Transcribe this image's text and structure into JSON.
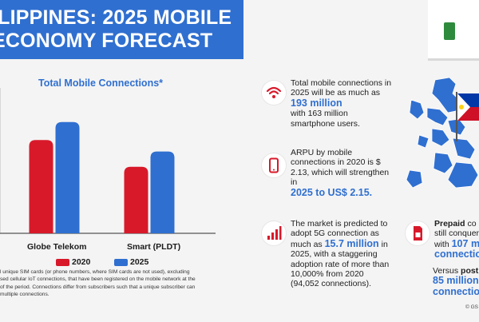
{
  "header": {
    "title_line1": "ILIPPINES: 2025 MOBILE",
    "title_line2": "ECONOMY FORECAST"
  },
  "chart_data": {
    "type": "bar",
    "title": "Total Mobile Connections*",
    "categories": [
      "Globe Telekom",
      "Smart (PLDT)"
    ],
    "series": [
      {
        "name": "2020",
        "values": [
          73,
          52
        ],
        "color": "#d8192a"
      },
      {
        "name": "2025",
        "values": [
          87,
          64
        ],
        "color": "#2f6fd0"
      }
    ],
    "ylim": [
      0,
      100
    ],
    "grid": false,
    "legend": "bottom"
  },
  "footnote": "l unique SIM cards (or phone numbers, where SIM cards are not used), excluding\nsed cellular IoT connections, that have been registered on the mobile network at the\nof the period. Connections differ from subscribers such that a unique subscriber can\nmultiple connections.",
  "stats": {
    "s1": {
      "pre": "Total mobile connections in 2025 will be as much as",
      "highlight": "193 million",
      "post": "with 163 million smartphone users.",
      "icon": "wifi-icon"
    },
    "s2": {
      "pre": "ARPU by mobile connections in 2020 is $ 2.13, which will strengthen in",
      "highlight": "2025 to US$ 2.15.",
      "icon": "smartphone-icon"
    },
    "s3": {
      "pre": "The market is predicted to adopt 5G connection as much as",
      "highlight": "15.7 million",
      "post": "in 2025, with a staggering adoption rate of more than 10,000% from 2020 (94,052 connections).",
      "icon": "signal-bars-icon"
    },
    "s4": {
      "bold": "Prepaid",
      "pre": "co",
      "line2": "still conquer",
      "pre3": "with",
      "highlight": "107 m",
      "line4": "connection",
      "icon": "sim-card-icon"
    },
    "s5": {
      "pre": "Versus",
      "bold": "postp",
      "highlight": "85 million",
      "line3": "connection"
    }
  },
  "colors": {
    "accent": "#2f6fd0",
    "red": "#d8192a",
    "flag_blue": "#0038a8",
    "flag_red": "#ce1126",
    "flag_yellow": "#fcd116"
  },
  "copyright": "© GS"
}
